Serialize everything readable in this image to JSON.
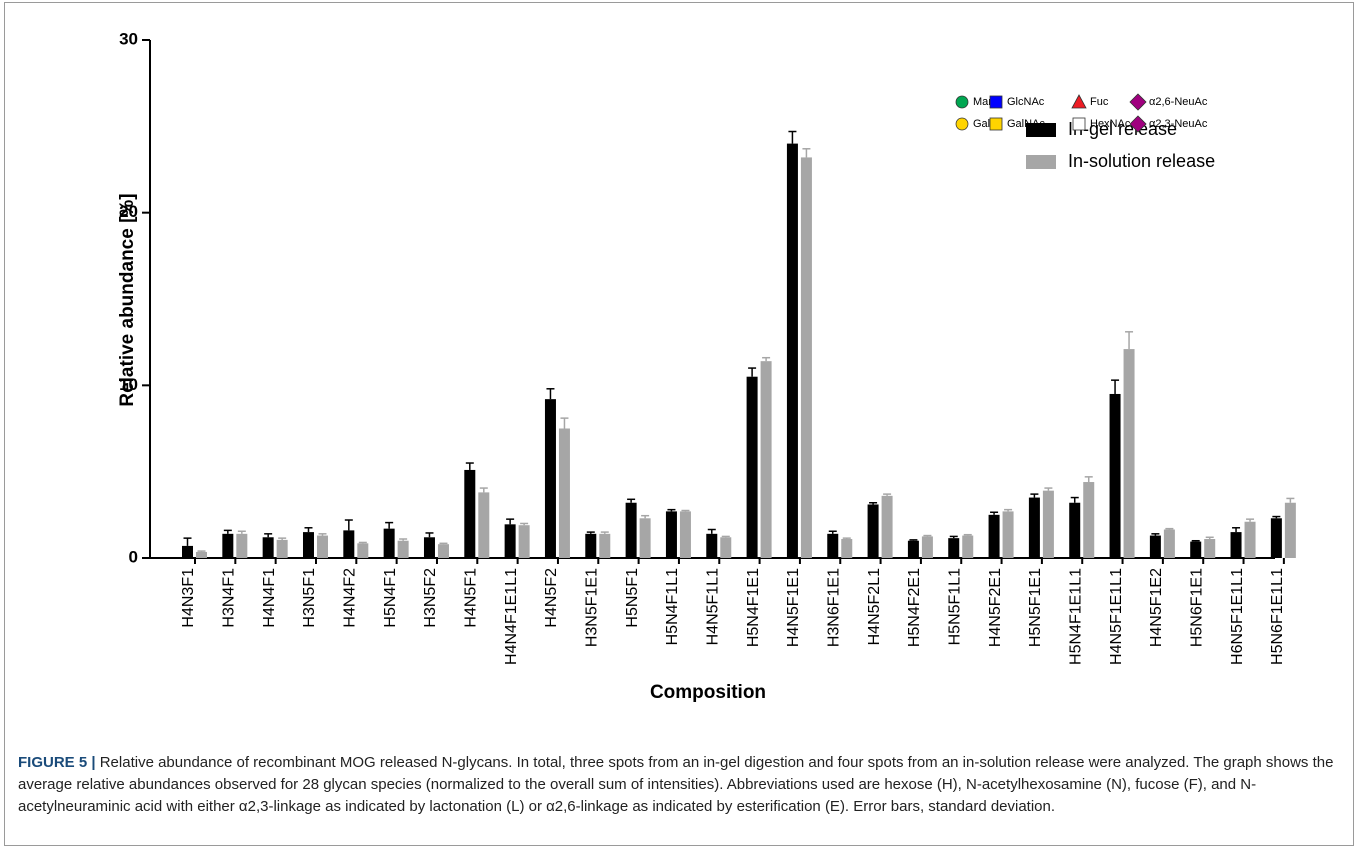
{
  "chart_data": {
    "type": "bar",
    "y_label": "Relative abundance [%]",
    "x_label": "Composition",
    "ylim": [
      0,
      30
    ],
    "yticks": [
      0,
      10,
      20,
      30
    ],
    "legend": "top-right",
    "categories": [
      "H4N3F1",
      "H3N4F1",
      "H4N4F1",
      "H3N5F1",
      "H4N4F2",
      "H5N4F1",
      "H3N5F2",
      "H4N5F1",
      "H4N4F1E1L1",
      "H4N5F2",
      "H3N5F1E1",
      "H5N5F1",
      "H5N4F1L1",
      "H4N5F1L1",
      "H5N4F1E1",
      "H4N5F1E1",
      "H3N6F1E1",
      "H4N5F2L1",
      "H5N4F2E1",
      "H5N5F1L1",
      "H4N5F2E1",
      "H5N5F1E1",
      "H5N4F1E1L1",
      "H4N5F1E1L1",
      "H4N5F1E2",
      "H5N6F1E1",
      "H6N5F1E1L1",
      "H5N6F1E1L1"
    ],
    "series": [
      {
        "name": "In-gel release",
        "color": "#000000",
        "values": [
          0.7,
          1.4,
          1.2,
          1.5,
          1.6,
          1.7,
          1.2,
          5.1,
          1.95,
          9.2,
          1.4,
          3.2,
          2.7,
          1.4,
          10.5,
          24.0,
          1.4,
          3.1,
          1.0,
          1.15,
          2.5,
          3.5,
          3.2,
          9.5,
          1.3,
          0.95,
          1.5,
          2.3
        ],
        "errors": [
          0.45,
          0.2,
          0.2,
          0.25,
          0.6,
          0.35,
          0.25,
          0.4,
          0.3,
          0.6,
          0.1,
          0.2,
          0.1,
          0.25,
          0.5,
          0.7,
          0.15,
          0.1,
          0.05,
          0.1,
          0.15,
          0.2,
          0.3,
          0.8,
          0.1,
          0.05,
          0.25,
          0.1
        ]
      },
      {
        "name": "In-solution release",
        "color": "#a6a6a6",
        "values": [
          0.35,
          1.4,
          1.05,
          1.3,
          0.85,
          1.0,
          0.8,
          3.8,
          1.9,
          7.5,
          1.4,
          2.3,
          2.7,
          1.2,
          11.4,
          23.2,
          1.1,
          3.6,
          1.25,
          1.3,
          2.7,
          3.9,
          4.4,
          12.1,
          1.65,
          1.1,
          2.1,
          3.2
        ],
        "errors": [
          0.05,
          0.15,
          0.1,
          0.1,
          0.05,
          0.1,
          0.05,
          0.25,
          0.1,
          0.6,
          0.1,
          0.15,
          0.05,
          0.05,
          0.2,
          0.5,
          0.05,
          0.1,
          0.05,
          0.05,
          0.1,
          0.15,
          0.3,
          1.0,
          0.05,
          0.1,
          0.15,
          0.25
        ]
      }
    ],
    "symbol_legend": [
      {
        "label": "Man",
        "shape": "circle",
        "color": "#00a651"
      },
      {
        "label": "GlcNAc",
        "shape": "square",
        "color": "#0000ff"
      },
      {
        "label": "Fuc",
        "shape": "triangle",
        "color": "#ed1c24"
      },
      {
        "label": "α2,6-NeuAc",
        "shape": "diamond",
        "color": "#a0007f"
      },
      {
        "label": "Gal",
        "shape": "circle",
        "color": "#ffd400"
      },
      {
        "label": "GalNAc",
        "shape": "square",
        "color": "#ffd400"
      },
      {
        "label": "HexNAc",
        "shape": "square",
        "color": "#ffffff"
      },
      {
        "label": "α2,3-NeuAc",
        "shape": "diamond",
        "color": "#a0007f"
      }
    ]
  },
  "caption": {
    "label": "FIGURE 5 |",
    "text": "Relative abundance of recombinant MOG released N-glycans. In total, three spots from an in-gel digestion and four spots from an in-solution release were analyzed. The graph shows the average relative abundances observed for 28 glycan species (normalized to the overall sum of intensities). Abbreviations used are hexose (H), N-acetylhexosamine (N), fucose (F), and N-acetylneuraminic acid with either α2,3-linkage as indicated by lactonation (L) or α2,6-linkage as indicated by esterification (E). Error bars, standard deviation."
  }
}
